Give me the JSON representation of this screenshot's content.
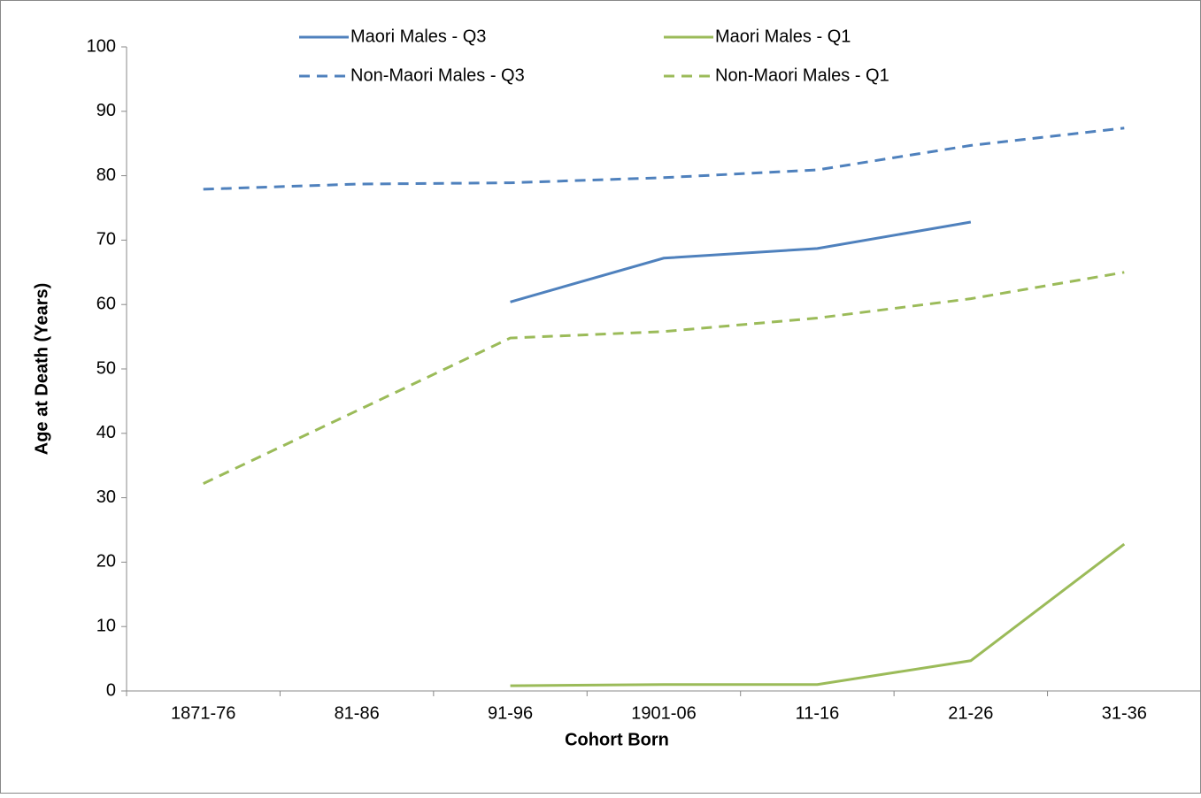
{
  "chart_data": {
    "type": "line",
    "x_label": "Cohort Born",
    "y_label": "Age at Death (Years)",
    "categories": [
      "1871-76",
      "81-86",
      "91-96",
      "1901-06",
      "11-16",
      "21-26",
      "31-36"
    ],
    "series": [
      {
        "name": "Maori Males - Q3",
        "color": "#4f81bd",
        "dashed": false,
        "values": [
          null,
          null,
          60.4,
          67.2,
          68.7,
          72.8,
          null
        ]
      },
      {
        "name": "Maori Males - Q1",
        "color": "#9bbb59",
        "dashed": false,
        "values": [
          null,
          null,
          0.8,
          1.0,
          1.0,
          4.7,
          22.8
        ]
      },
      {
        "name": "Non-Maori Males - Q3",
        "color": "#4f81bd",
        "dashed": true,
        "values": [
          77.9,
          78.7,
          78.9,
          79.7,
          80.9,
          84.7,
          87.4
        ]
      },
      {
        "name": "Non-Maori Males - Q1",
        "color": "#9bbb59",
        "dashed": true,
        "values": [
          32.2,
          43.5,
          54.8,
          55.8,
          57.9,
          60.9,
          65.0
        ]
      }
    ],
    "ylim": [
      0,
      100
    ],
    "yticks": [
      0,
      10,
      20,
      30,
      40,
      50,
      60,
      70,
      80,
      90,
      100
    ],
    "grid": false,
    "legend": "top"
  }
}
